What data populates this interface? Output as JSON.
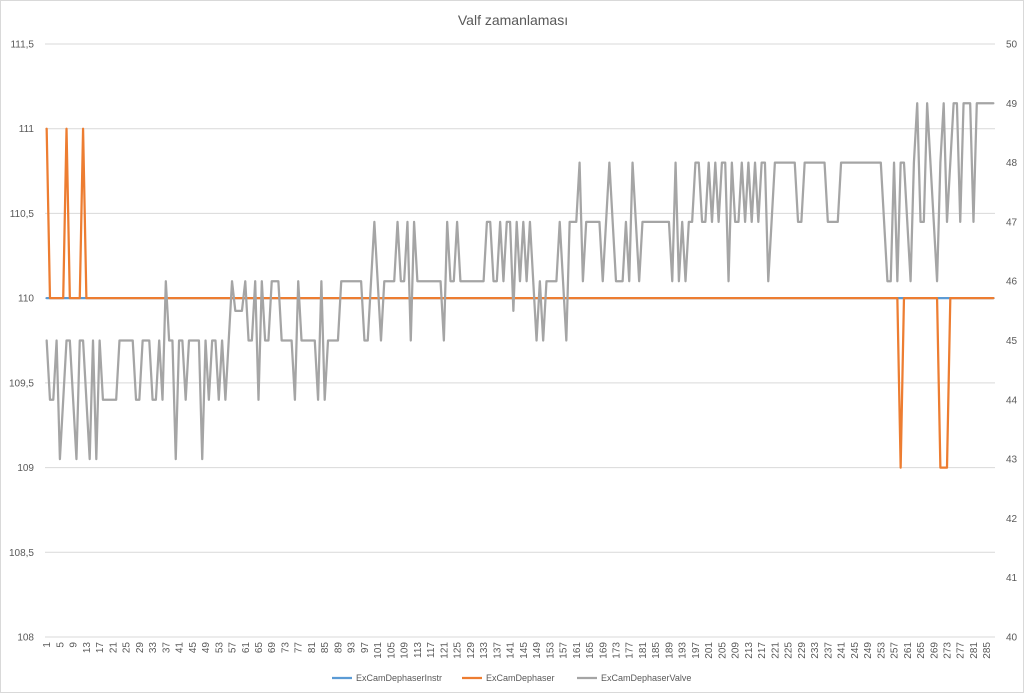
{
  "chart_data": {
    "type": "line",
    "title": "Valf zamanlaması",
    "xlabel": "",
    "ylabel": "",
    "y2label": "",
    "x_start": 1,
    "x_end": 287,
    "x_tick_start": 1,
    "x_tick_step": 4,
    "ylim": [
      108,
      111.5
    ],
    "yticks": [
      "108",
      "108,5",
      "109",
      "109,5",
      "110",
      "110,5",
      "111",
      "111,5"
    ],
    "y2lim": [
      40,
      50
    ],
    "y2ticks": [
      "40",
      "41",
      "42",
      "43",
      "44",
      "45",
      "46",
      "47",
      "48",
      "49",
      "50"
    ],
    "grid": true,
    "legend_position": "bottom",
    "series": [
      {
        "name": "ExCamDephaserInstr",
        "color": "#5b9bd5",
        "axis": "left",
        "segments": [
          {
            "from": 1,
            "to": 287,
            "value": 110
          }
        ]
      },
      {
        "name": "ExCamDephaser",
        "color": "#ed7d31",
        "axis": "left",
        "segments": [
          {
            "from": 1,
            "to": 1,
            "value": 111
          },
          {
            "from": 2,
            "to": 6,
            "value": 110
          },
          {
            "from": 7,
            "to": 7,
            "value": 111
          },
          {
            "from": 8,
            "to": 11,
            "value": 110
          },
          {
            "from": 12,
            "to": 12,
            "value": 111
          },
          {
            "from": 13,
            "to": 258,
            "value": 110
          },
          {
            "from": 259,
            "to": 259,
            "value": 109
          },
          {
            "from": 260,
            "to": 270,
            "value": 110
          },
          {
            "from": 271,
            "to": 273,
            "value": 109
          },
          {
            "from": 274,
            "to": 287,
            "value": 110
          }
        ]
      },
      {
        "name": "ExCamDephaserValve",
        "color": "#a5a5a5",
        "axis": "right",
        "segments": [
          {
            "from": 1,
            "to": 1,
            "value": 45
          },
          {
            "from": 2,
            "to": 3,
            "value": 44
          },
          {
            "from": 4,
            "to": 4,
            "value": 45
          },
          {
            "from": 5,
            "to": 5,
            "value": 43
          },
          {
            "from": 6,
            "to": 6,
            "value": 44
          },
          {
            "from": 7,
            "to": 8,
            "value": 45
          },
          {
            "from": 9,
            "to": 9,
            "value": 44
          },
          {
            "from": 10,
            "to": 10,
            "value": 43
          },
          {
            "from": 11,
            "to": 12,
            "value": 45
          },
          {
            "from": 13,
            "to": 13,
            "value": 44
          },
          {
            "from": 14,
            "to": 14,
            "value": 43
          },
          {
            "from": 15,
            "to": 15,
            "value": 45
          },
          {
            "from": 16,
            "to": 16,
            "value": 43
          },
          {
            "from": 17,
            "to": 17,
            "value": 45
          },
          {
            "from": 18,
            "to": 22,
            "value": 44
          },
          {
            "from": 23,
            "to": 27,
            "value": 45
          },
          {
            "from": 28,
            "to": 29,
            "value": 44
          },
          {
            "from": 30,
            "to": 32,
            "value": 45
          },
          {
            "from": 33,
            "to": 34,
            "value": 44
          },
          {
            "from": 35,
            "to": 35,
            "value": 45
          },
          {
            "from": 36,
            "to": 36,
            "value": 44
          },
          {
            "from": 37,
            "to": 37,
            "value": 46
          },
          {
            "from": 38,
            "to": 39,
            "value": 45
          },
          {
            "from": 40,
            "to": 40,
            "value": 43
          },
          {
            "from": 41,
            "to": 42,
            "value": 45
          },
          {
            "from": 43,
            "to": 43,
            "value": 44
          },
          {
            "from": 44,
            "to": 47,
            "value": 45
          },
          {
            "from": 48,
            "to": 48,
            "value": 43
          },
          {
            "from": 49,
            "to": 49,
            "value": 45
          },
          {
            "from": 50,
            "to": 50,
            "value": 44
          },
          {
            "from": 51,
            "to": 52,
            "value": 45
          },
          {
            "from": 53,
            "to": 53,
            "value": 44
          },
          {
            "from": 54,
            "to": 54,
            "value": 45
          },
          {
            "from": 55,
            "to": 55,
            "value": 44
          },
          {
            "from": 56,
            "to": 56,
            "value": 45
          },
          {
            "from": 57,
            "to": 57,
            "value": 46
          },
          {
            "from": 58,
            "to": 60,
            "value": 45.5
          },
          {
            "from": 61,
            "to": 61,
            "value": 46
          },
          {
            "from": 62,
            "to": 63,
            "value": 45
          },
          {
            "from": 64,
            "to": 64,
            "value": 46
          },
          {
            "from": 65,
            "to": 65,
            "value": 44
          },
          {
            "from": 66,
            "to": 66,
            "value": 46
          },
          {
            "from": 67,
            "to": 68,
            "value": 45
          },
          {
            "from": 69,
            "to": 71,
            "value": 46
          },
          {
            "from": 72,
            "to": 75,
            "value": 45
          },
          {
            "from": 76,
            "to": 76,
            "value": 44
          },
          {
            "from": 77,
            "to": 77,
            "value": 46
          },
          {
            "from": 78,
            "to": 78,
            "value": 45
          },
          {
            "from": 79,
            "to": 82,
            "value": 45
          },
          {
            "from": 83,
            "to": 83,
            "value": 44
          },
          {
            "from": 84,
            "to": 84,
            "value": 46
          },
          {
            "from": 85,
            "to": 85,
            "value": 44
          },
          {
            "from": 86,
            "to": 89,
            "value": 45
          },
          {
            "from": 90,
            "to": 96,
            "value": 46
          },
          {
            "from": 97,
            "to": 98,
            "value": 45
          },
          {
            "from": 99,
            "to": 99,
            "value": 46
          },
          {
            "from": 100,
            "to": 100,
            "value": 47
          },
          {
            "from": 101,
            "to": 101,
            "value": 46
          },
          {
            "from": 102,
            "to": 102,
            "value": 45
          },
          {
            "from": 103,
            "to": 106,
            "value": 46
          },
          {
            "from": 107,
            "to": 107,
            "value": 47
          },
          {
            "from": 108,
            "to": 109,
            "value": 46
          },
          {
            "from": 110,
            "to": 110,
            "value": 47
          },
          {
            "from": 111,
            "to": 111,
            "value": 45
          },
          {
            "from": 112,
            "to": 112,
            "value": 47
          },
          {
            "from": 113,
            "to": 120,
            "value": 46
          },
          {
            "from": 121,
            "to": 121,
            "value": 45
          },
          {
            "from": 122,
            "to": 122,
            "value": 47
          },
          {
            "from": 123,
            "to": 124,
            "value": 46
          },
          {
            "from": 125,
            "to": 125,
            "value": 47
          },
          {
            "from": 126,
            "to": 133,
            "value": 46
          },
          {
            "from": 134,
            "to": 135,
            "value": 47
          },
          {
            "from": 136,
            "to": 137,
            "value": 46
          },
          {
            "from": 138,
            "to": 138,
            "value": 47
          },
          {
            "from": 139,
            "to": 139,
            "value": 46
          },
          {
            "from": 140,
            "to": 141,
            "value": 47
          },
          {
            "from": 142,
            "to": 142,
            "value": 45.5
          },
          {
            "from": 143,
            "to": 143,
            "value": 47
          },
          {
            "from": 144,
            "to": 144,
            "value": 46
          },
          {
            "from": 145,
            "to": 145,
            "value": 47
          },
          {
            "from": 146,
            "to": 146,
            "value": 46
          },
          {
            "from": 147,
            "to": 147,
            "value": 47
          },
          {
            "from": 148,
            "to": 148,
            "value": 46
          },
          {
            "from": 149,
            "to": 149,
            "value": 45
          },
          {
            "from": 150,
            "to": 150,
            "value": 46
          },
          {
            "from": 151,
            "to": 151,
            "value": 45
          },
          {
            "from": 152,
            "to": 155,
            "value": 46
          },
          {
            "from": 156,
            "to": 156,
            "value": 47
          },
          {
            "from": 157,
            "to": 157,
            "value": 46
          },
          {
            "from": 158,
            "to": 158,
            "value": 45
          },
          {
            "from": 159,
            "to": 161,
            "value": 47
          },
          {
            "from": 162,
            "to": 162,
            "value": 48
          },
          {
            "from": 163,
            "to": 163,
            "value": 46
          },
          {
            "from": 164,
            "to": 168,
            "value": 47
          },
          {
            "from": 169,
            "to": 169,
            "value": 46
          },
          {
            "from": 170,
            "to": 170,
            "value": 47
          },
          {
            "from": 171,
            "to": 171,
            "value": 48
          },
          {
            "from": 172,
            "to": 172,
            "value": 47
          },
          {
            "from": 173,
            "to": 175,
            "value": 46
          },
          {
            "from": 176,
            "to": 176,
            "value": 47
          },
          {
            "from": 177,
            "to": 177,
            "value": 46
          },
          {
            "from": 178,
            "to": 178,
            "value": 48
          },
          {
            "from": 179,
            "to": 179,
            "value": 47
          },
          {
            "from": 180,
            "to": 180,
            "value": 46
          },
          {
            "from": 181,
            "to": 189,
            "value": 47
          },
          {
            "from": 190,
            "to": 190,
            "value": 46
          },
          {
            "from": 191,
            "to": 191,
            "value": 48
          },
          {
            "from": 192,
            "to": 192,
            "value": 46
          },
          {
            "from": 193,
            "to": 193,
            "value": 47
          },
          {
            "from": 194,
            "to": 194,
            "value": 46
          },
          {
            "from": 195,
            "to": 196,
            "value": 47
          },
          {
            "from": 197,
            "to": 198,
            "value": 48
          },
          {
            "from": 199,
            "to": 200,
            "value": 47
          },
          {
            "from": 201,
            "to": 201,
            "value": 48
          },
          {
            "from": 202,
            "to": 202,
            "value": 47
          },
          {
            "from": 203,
            "to": 203,
            "value": 48
          },
          {
            "from": 204,
            "to": 204,
            "value": 47
          },
          {
            "from": 205,
            "to": 206,
            "value": 48
          },
          {
            "from": 207,
            "to": 207,
            "value": 46
          },
          {
            "from": 208,
            "to": 208,
            "value": 48
          },
          {
            "from": 209,
            "to": 210,
            "value": 47
          },
          {
            "from": 211,
            "to": 211,
            "value": 48
          },
          {
            "from": 212,
            "to": 212,
            "value": 47
          },
          {
            "from": 213,
            "to": 213,
            "value": 48
          },
          {
            "from": 214,
            "to": 214,
            "value": 47
          },
          {
            "from": 215,
            "to": 215,
            "value": 48
          },
          {
            "from": 216,
            "to": 216,
            "value": 47
          },
          {
            "from": 217,
            "to": 218,
            "value": 48
          },
          {
            "from": 219,
            "to": 219,
            "value": 46
          },
          {
            "from": 220,
            "to": 220,
            "value": 47
          },
          {
            "from": 221,
            "to": 227,
            "value": 48
          },
          {
            "from": 228,
            "to": 229,
            "value": 47
          },
          {
            "from": 230,
            "to": 236,
            "value": 48
          },
          {
            "from": 237,
            "to": 240,
            "value": 47
          },
          {
            "from": 241,
            "to": 241,
            "value": 48
          },
          {
            "from": 242,
            "to": 247,
            "value": 48
          },
          {
            "from": 248,
            "to": 253,
            "value": 48
          },
          {
            "from": 254,
            "to": 254,
            "value": 47
          },
          {
            "from": 255,
            "to": 256,
            "value": 46
          },
          {
            "from": 257,
            "to": 257,
            "value": 48
          },
          {
            "from": 258,
            "to": 258,
            "value": 46
          },
          {
            "from": 259,
            "to": 260,
            "value": 48
          },
          {
            "from": 261,
            "to": 261,
            "value": 47
          },
          {
            "from": 262,
            "to": 262,
            "value": 46
          },
          {
            "from": 263,
            "to": 263,
            "value": 48
          },
          {
            "from": 264,
            "to": 264,
            "value": 49
          },
          {
            "from": 265,
            "to": 266,
            "value": 47
          },
          {
            "from": 267,
            "to": 267,
            "value": 49
          },
          {
            "from": 268,
            "to": 268,
            "value": 48
          },
          {
            "from": 269,
            "to": 269,
            "value": 47
          },
          {
            "from": 270,
            "to": 270,
            "value": 46
          },
          {
            "from": 271,
            "to": 271,
            "value": 48
          },
          {
            "from": 272,
            "to": 272,
            "value": 49
          },
          {
            "from": 273,
            "to": 273,
            "value": 47
          },
          {
            "from": 274,
            "to": 274,
            "value": 48
          },
          {
            "from": 275,
            "to": 276,
            "value": 49
          },
          {
            "from": 277,
            "to": 277,
            "value": 47
          },
          {
            "from": 278,
            "to": 278,
            "value": 49
          },
          {
            "from": 279,
            "to": 280,
            "value": 49
          },
          {
            "from": 281,
            "to": 281,
            "value": 47
          },
          {
            "from": 282,
            "to": 287,
            "value": 49
          }
        ]
      }
    ]
  }
}
